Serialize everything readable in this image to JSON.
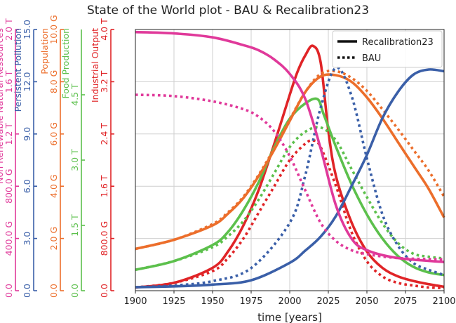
{
  "chart_data": {
    "type": "line",
    "title": "State of the World plot - BAU & Recalibration23",
    "xlabel": "time [years]",
    "x_ticks": [
      1900,
      1925,
      1950,
      1975,
      2000,
      2025,
      2050,
      2075,
      2100
    ],
    "xlim": [
      1900,
      2100
    ],
    "grid": true,
    "legend": {
      "position": "top-right",
      "entries": [
        {
          "label": "Recalibration23",
          "style": "solid"
        },
        {
          "label": "BAU",
          "style": "dotted"
        }
      ]
    },
    "axes": [
      {
        "key": "nrr",
        "label": "Non Renewable Natural Ressources",
        "color": "#e0399a",
        "ylim": [
          0,
          2.0
        ],
        "ticks": [
          {
            "v": 0,
            "t": "0.0"
          },
          {
            "v": 0.4,
            "t": "400.0 G"
          },
          {
            "v": 0.8,
            "t": "800.0 G"
          },
          {
            "v": 1.2,
            "t": "1.2 T"
          },
          {
            "v": 1.6,
            "t": "1.6 T"
          },
          {
            "v": 2.0,
            "t": "2.0 T"
          }
        ]
      },
      {
        "key": "pp",
        "label": "Persistent Pollution",
        "color": "#3a5fa8",
        "ylim": [
          0,
          15
        ],
        "ticks": [
          {
            "v": 0,
            "t": "0.0"
          },
          {
            "v": 3,
            "t": "3.0"
          },
          {
            "v": 6,
            "t": "6.0"
          },
          {
            "v": 9,
            "t": "9.0"
          },
          {
            "v": 12,
            "t": "12.0"
          },
          {
            "v": 15,
            "t": "15.0"
          }
        ]
      },
      {
        "key": "pop",
        "label": "Population",
        "color": "#ec6e2b",
        "ylim": [
          0,
          10
        ],
        "ticks": [
          {
            "v": 0,
            "t": "0.0"
          },
          {
            "v": 2,
            "t": "2.0 G"
          },
          {
            "v": 4,
            "t": "4.0 G"
          },
          {
            "v": 6,
            "t": "6.0 G"
          },
          {
            "v": 8,
            "t": "8.0 G"
          },
          {
            "v": 10,
            "t": "10.0 G"
          }
        ]
      },
      {
        "key": "food",
        "label": "Food Production",
        "color": "#5cc04c",
        "ylim": [
          0,
          6
        ],
        "ticks": [
          {
            "v": 0,
            "t": "0.0"
          },
          {
            "v": 1.5,
            "t": "1.5 T"
          },
          {
            "v": 3,
            "t": "3.0 T"
          },
          {
            "v": 4.5,
            "t": "4.5 T"
          }
        ]
      },
      {
        "key": "io",
        "label": "Industrial Output",
        "color": "#e02427",
        "ylim": [
          0,
          4.0
        ],
        "ticks": [
          {
            "v": 0,
            "t": "0.0"
          },
          {
            "v": 0.8,
            "t": "800.0 G"
          },
          {
            "v": 1.6,
            "t": "1.6 T"
          },
          {
            "v": 2.4,
            "t": "2.4 T"
          },
          {
            "v": 3.2,
            "t": "3.2 T"
          },
          {
            "v": 4.0,
            "t": "4.0 T"
          }
        ]
      }
    ],
    "series": [
      {
        "axis": "nrr",
        "style": "solid",
        "x": [
          1900,
          1925,
          1950,
          1970,
          1980,
          1990,
          2000,
          2010,
          2020,
          2030,
          2040,
          2050,
          2070,
          2100
        ],
        "y": [
          1.98,
          1.97,
          1.94,
          1.88,
          1.84,
          1.77,
          1.66,
          1.47,
          1.09,
          0.65,
          0.4,
          0.31,
          0.25,
          0.22
        ]
      },
      {
        "axis": "nrr",
        "style": "dotted",
        "x": [
          1900,
          1925,
          1950,
          1970,
          1980,
          1990,
          2000,
          2010,
          2020,
          2030,
          2040,
          2050,
          2070,
          2100
        ],
        "y": [
          1.5,
          1.49,
          1.45,
          1.39,
          1.33,
          1.22,
          1.03,
          0.77,
          0.52,
          0.38,
          0.31,
          0.28,
          0.25,
          0.24
        ]
      },
      {
        "axis": "pp",
        "style": "solid",
        "x": [
          1900,
          1925,
          1950,
          1975,
          2000,
          2010,
          2020,
          2030,
          2040,
          2050,
          2060,
          2070,
          2080,
          2090,
          2100
        ],
        "y": [
          0.2,
          0.25,
          0.35,
          0.6,
          1.6,
          2.3,
          3.1,
          4.3,
          6.0,
          7.8,
          9.9,
          11.4,
          12.4,
          12.7,
          12.6
        ]
      },
      {
        "axis": "pp",
        "style": "dotted",
        "x": [
          1900,
          1925,
          1950,
          1975,
          2000,
          2010,
          2020,
          2030,
          2040,
          2050,
          2060,
          2070,
          2080,
          2090,
          2100
        ],
        "y": [
          0.2,
          0.3,
          0.55,
          1.3,
          3.9,
          6.6,
          10.5,
          12.8,
          11.2,
          7.6,
          4.4,
          2.6,
          1.6,
          1.2,
          0.9
        ]
      },
      {
        "axis": "pop",
        "style": "solid",
        "x": [
          1900,
          1925,
          1950,
          1960,
          1970,
          1980,
          1990,
          2000,
          2010,
          2020,
          2030,
          2040,
          2050,
          2060,
          2070,
          2080,
          2090,
          2100
        ],
        "y": [
          1.6,
          1.95,
          2.5,
          2.95,
          3.55,
          4.4,
          5.4,
          6.5,
          7.6,
          8.2,
          8.25,
          8.0,
          7.4,
          6.6,
          5.7,
          4.8,
          3.9,
          2.8
        ]
      },
      {
        "axis": "pop",
        "style": "dotted",
        "x": [
          1900,
          1925,
          1950,
          1960,
          1970,
          1980,
          1990,
          2000,
          2010,
          2020,
          2030,
          2040,
          2050,
          2060,
          2070,
          2080,
          2090,
          2100
        ],
        "y": [
          1.6,
          1.95,
          2.55,
          3.0,
          3.6,
          4.45,
          5.45,
          6.55,
          7.6,
          8.3,
          8.4,
          8.15,
          7.65,
          6.95,
          6.2,
          5.4,
          4.6,
          3.6
        ]
      },
      {
        "axis": "food",
        "style": "solid",
        "x": [
          1900,
          1925,
          1950,
          1960,
          1970,
          1980,
          1990,
          2000,
          2010,
          2018,
          2022,
          2030,
          2040,
          2050,
          2060,
          2070,
          2080,
          2090,
          2100
        ],
        "y": [
          0.48,
          0.68,
          1.05,
          1.35,
          1.85,
          2.5,
          3.3,
          3.95,
          4.3,
          4.4,
          4.05,
          3.3,
          2.45,
          1.75,
          1.2,
          0.8,
          0.55,
          0.42,
          0.36
        ]
      },
      {
        "axis": "food",
        "style": "dotted",
        "x": [
          1900,
          1925,
          1950,
          1960,
          1970,
          1980,
          1990,
          2000,
          2010,
          2020,
          2030,
          2040,
          2050,
          2060,
          2070,
          2080,
          2090,
          2100
        ],
        "y": [
          0.48,
          0.68,
          1.0,
          1.25,
          1.6,
          2.1,
          2.7,
          3.3,
          3.65,
          3.75,
          3.45,
          2.8,
          2.15,
          1.55,
          1.1,
          0.85,
          0.78,
          0.74
        ]
      },
      {
        "axis": "io",
        "style": "solid",
        "x": [
          1900,
          1925,
          1950,
          1960,
          1970,
          1980,
          1990,
          2000,
          2005,
          2010,
          2015,
          2020,
          2025,
          2030,
          2040,
          2050,
          2060,
          2070,
          2080,
          2090,
          2100
        ],
        "y": [
          0.05,
          0.12,
          0.35,
          0.6,
          1.0,
          1.55,
          2.25,
          3.0,
          3.35,
          3.6,
          3.75,
          3.5,
          2.45,
          1.75,
          1.05,
          0.6,
          0.35,
          0.22,
          0.15,
          0.1,
          0.06
        ]
      },
      {
        "axis": "io",
        "style": "dotted",
        "x": [
          1900,
          1925,
          1950,
          1960,
          1970,
          1980,
          1990,
          2000,
          2010,
          2015,
          2020,
          2030,
          2040,
          2050,
          2060,
          2070,
          2080,
          2090,
          2100
        ],
        "y": [
          0.05,
          0.12,
          0.3,
          0.5,
          0.8,
          1.2,
          1.6,
          2.0,
          2.25,
          2.3,
          2.2,
          1.6,
          0.9,
          0.45,
          0.22,
          0.12,
          0.08,
          0.05,
          0.04
        ]
      }
    ]
  }
}
